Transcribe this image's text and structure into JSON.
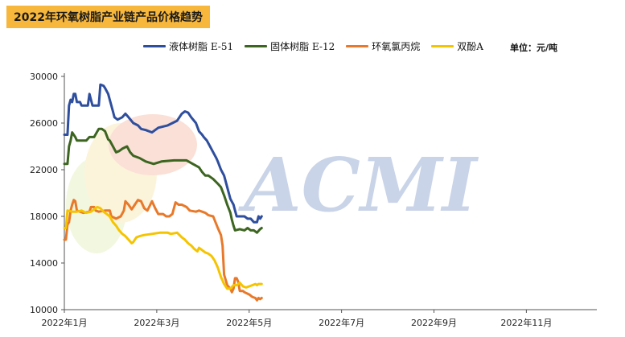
{
  "chart_data": {
    "type": "line",
    "title": "2022年环氧树脂产业链产品价格趋势",
    "unit_label": "单位：元/吨",
    "xlabel": "",
    "ylabel": "",
    "x_ticks": [
      "2022年1月",
      "2022年3月",
      "2022年5月",
      "2022年7月",
      "2022年9月",
      "2022年11月"
    ],
    "y_ticks": [
      "10000",
      "14000",
      "18000",
      "22000",
      "26000",
      "30000"
    ],
    "ylim": [
      10000,
      30000
    ],
    "legend_position": "top",
    "grid": false,
    "watermark": "ACMI",
    "series": [
      {
        "name": "液体树脂 E-51",
        "color": "#2e4e9e",
        "values": [
          [
            0,
            25000
          ],
          [
            2,
            25000
          ],
          [
            3,
            27500
          ],
          [
            4,
            28000
          ],
          [
            5,
            27800
          ],
          [
            6,
            28500
          ],
          [
            7,
            28500
          ],
          [
            8,
            27800
          ],
          [
            10,
            27800
          ],
          [
            11,
            27500
          ],
          [
            15,
            27500
          ],
          [
            16,
            28500
          ],
          [
            17,
            28000
          ],
          [
            18,
            27500
          ],
          [
            22,
            27500
          ],
          [
            23,
            29300
          ],
          [
            25,
            29200
          ],
          [
            26,
            29000
          ],
          [
            28,
            28500
          ],
          [
            31,
            27000
          ],
          [
            32,
            26500
          ],
          [
            34,
            26300
          ],
          [
            37,
            26500
          ],
          [
            39,
            26800
          ],
          [
            41,
            26500
          ],
          [
            44,
            26000
          ],
          [
            47,
            25800
          ],
          [
            49,
            25500
          ],
          [
            52,
            25400
          ],
          [
            56,
            25200
          ],
          [
            60,
            25600
          ],
          [
            66,
            25800
          ],
          [
            72,
            26200
          ],
          [
            75,
            26800
          ],
          [
            77,
            27000
          ],
          [
            79,
            26900
          ],
          [
            81,
            26500
          ],
          [
            84,
            26000
          ],
          [
            86,
            25300
          ],
          [
            88,
            25000
          ],
          [
            89,
            24800
          ],
          [
            91,
            24500
          ],
          [
            93,
            24000
          ],
          [
            95,
            23500
          ],
          [
            97,
            23000
          ],
          [
            98,
            22700
          ],
          [
            100,
            22000
          ],
          [
            102,
            21500
          ],
          [
            104,
            20500
          ],
          [
            106,
            19500
          ],
          [
            108,
            19000
          ],
          [
            109,
            18500
          ],
          [
            110,
            18000
          ],
          [
            115,
            18000
          ],
          [
            117,
            17800
          ],
          [
            119,
            17800
          ],
          [
            121,
            17500
          ],
          [
            123,
            17500
          ],
          [
            124,
            18000
          ],
          [
            125,
            17800
          ],
          [
            126,
            18000
          ]
        ]
      },
      {
        "name": "固体树脂 E-12",
        "color": "#3c6520",
        "values": [
          [
            0,
            22500
          ],
          [
            2,
            22500
          ],
          [
            3,
            24000
          ],
          [
            4,
            24500
          ],
          [
            5,
            25200
          ],
          [
            7,
            24800
          ],
          [
            8,
            24500
          ],
          [
            14,
            24500
          ],
          [
            16,
            24800
          ],
          [
            19,
            24800
          ],
          [
            22,
            25500
          ],
          [
            24,
            25500
          ],
          [
            26,
            25300
          ],
          [
            28,
            24600
          ],
          [
            29,
            24500
          ],
          [
            31,
            24000
          ],
          [
            33,
            23500
          ],
          [
            35,
            23600
          ],
          [
            37,
            23800
          ],
          [
            40,
            24000
          ],
          [
            42,
            23500
          ],
          [
            44,
            23200
          ],
          [
            48,
            23000
          ],
          [
            52,
            22700
          ],
          [
            57,
            22500
          ],
          [
            62,
            22700
          ],
          [
            70,
            22800
          ],
          [
            78,
            22800
          ],
          [
            82,
            22500
          ],
          [
            86,
            22200
          ],
          [
            88,
            21800
          ],
          [
            90,
            21500
          ],
          [
            92,
            21500
          ],
          [
            95,
            21200
          ],
          [
            98,
            20800
          ],
          [
            100,
            20500
          ],
          [
            102,
            19800
          ],
          [
            104,
            19000
          ],
          [
            106,
            18300
          ],
          [
            107,
            17700
          ],
          [
            108,
            17200
          ],
          [
            109,
            16800
          ],
          [
            112,
            16900
          ],
          [
            115,
            16800
          ],
          [
            117,
            17000
          ],
          [
            119,
            16800
          ],
          [
            121,
            16800
          ],
          [
            123,
            16600
          ],
          [
            125,
            16900
          ],
          [
            126,
            17000
          ]
        ]
      },
      {
        "name": "环氧氯丙烷",
        "color": "#e8792a",
        "values": [
          [
            0,
            16000
          ],
          [
            1,
            16000
          ],
          [
            2,
            17300
          ],
          [
            3,
            17500
          ],
          [
            4,
            18500
          ],
          [
            5,
            19000
          ],
          [
            6,
            19400
          ],
          [
            7,
            19300
          ],
          [
            8,
            18500
          ],
          [
            12,
            18300
          ],
          [
            16,
            18400
          ],
          [
            17,
            18800
          ],
          [
            19,
            18800
          ],
          [
            20,
            18500
          ],
          [
            22,
            18400
          ],
          [
            26,
            18500
          ],
          [
            29,
            18500
          ],
          [
            30,
            18000
          ],
          [
            33,
            17800
          ],
          [
            36,
            18000
          ],
          [
            38,
            18500
          ],
          [
            39,
            19300
          ],
          [
            41,
            19000
          ],
          [
            43,
            18600
          ],
          [
            45,
            19000
          ],
          [
            47,
            19400
          ],
          [
            49,
            19300
          ],
          [
            51,
            18700
          ],
          [
            53,
            18500
          ],
          [
            56,
            19300
          ],
          [
            58,
            18700
          ],
          [
            60,
            18200
          ],
          [
            63,
            18200
          ],
          [
            65,
            18000
          ],
          [
            67,
            18000
          ],
          [
            69,
            18200
          ],
          [
            71,
            19200
          ],
          [
            73,
            19000
          ],
          [
            75,
            19000
          ],
          [
            78,
            18800
          ],
          [
            80,
            18500
          ],
          [
            84,
            18400
          ],
          [
            86,
            18500
          ],
          [
            90,
            18300
          ],
          [
            92,
            18100
          ],
          [
            95,
            18000
          ],
          [
            98,
            17000
          ],
          [
            100,
            16400
          ],
          [
            101,
            15500
          ],
          [
            102,
            13000
          ],
          [
            104,
            12100
          ],
          [
            106,
            11800
          ],
          [
            107,
            11500
          ],
          [
            108,
            11800
          ],
          [
            109,
            12700
          ],
          [
            110,
            12700
          ],
          [
            111,
            12400
          ],
          [
            112,
            11600
          ],
          [
            114,
            11600
          ],
          [
            115,
            11500
          ],
          [
            118,
            11300
          ],
          [
            120,
            11100
          ],
          [
            122,
            11000
          ],
          [
            123,
            10800
          ],
          [
            124,
            11000
          ],
          [
            125,
            10900
          ],
          [
            126,
            11000
          ]
        ]
      },
      {
        "name": "双酚A",
        "color": "#f5c400",
        "values": [
          [
            0,
            17000
          ],
          [
            1,
            17000
          ],
          [
            2,
            18500
          ],
          [
            5,
            18400
          ],
          [
            8,
            18400
          ],
          [
            11,
            18500
          ],
          [
            14,
            18300
          ],
          [
            17,
            18400
          ],
          [
            19,
            18600
          ],
          [
            21,
            18800
          ],
          [
            23,
            18700
          ],
          [
            25,
            18400
          ],
          [
            27,
            18200
          ],
          [
            29,
            18000
          ],
          [
            31,
            17500
          ],
          [
            33,
            17200
          ],
          [
            35,
            16800
          ],
          [
            37,
            16500
          ],
          [
            39,
            16300
          ],
          [
            41,
            16000
          ],
          [
            43,
            15700
          ],
          [
            44,
            15800
          ],
          [
            46,
            16200
          ],
          [
            48,
            16300
          ],
          [
            51,
            16400
          ],
          [
            56,
            16500
          ],
          [
            61,
            16600
          ],
          [
            66,
            16600
          ],
          [
            68,
            16500
          ],
          [
            72,
            16600
          ],
          [
            75,
            16200
          ],
          [
            77,
            16000
          ],
          [
            79,
            15700
          ],
          [
            81,
            15500
          ],
          [
            83,
            15200
          ],
          [
            85,
            15000
          ],
          [
            86,
            15300
          ],
          [
            87,
            15200
          ],
          [
            89,
            15000
          ],
          [
            90,
            14900
          ],
          [
            92,
            14800
          ],
          [
            94,
            14600
          ],
          [
            96,
            14200
          ],
          [
            98,
            13600
          ],
          [
            100,
            12800
          ],
          [
            102,
            12200
          ],
          [
            104,
            11800
          ],
          [
            106,
            11800
          ],
          [
            108,
            12100
          ],
          [
            110,
            12100
          ],
          [
            112,
            12300
          ],
          [
            114,
            12000
          ],
          [
            116,
            11900
          ],
          [
            118,
            12000
          ],
          [
            120,
            12100
          ],
          [
            122,
            12200
          ],
          [
            123,
            12100
          ],
          [
            124,
            12200
          ],
          [
            125,
            12200
          ],
          [
            126,
            12200
          ]
        ]
      }
    ]
  }
}
